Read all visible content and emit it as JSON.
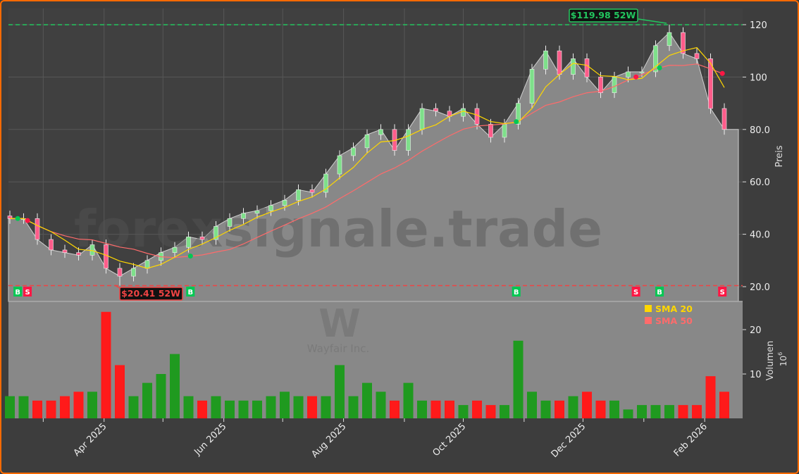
{
  "chart_data": [
    {
      "type": "candlestick",
      "ylabel": "Preis",
      "ylim": [
        14.4,
        126.2
      ],
      "yticks": [
        "20.0",
        "40.0",
        "60.0",
        "80.0",
        "100",
        "120"
      ],
      "grid": true,
      "dates": [
        "2025-02-12",
        "2025-02-19",
        "2025-02-26",
        "2025-03-05",
        "2025-03-12",
        "2025-03-19",
        "2025-03-26",
        "2025-04-02",
        "2025-04-09",
        "2025-04-16",
        "2025-04-23",
        "2025-04-30",
        "2025-05-07",
        "2025-05-14",
        "2025-05-21",
        "2025-05-28",
        "2025-06-04",
        "2025-06-11",
        "2025-06-18",
        "2025-06-25",
        "2025-07-02",
        "2025-07-09",
        "2025-07-16",
        "2025-07-23",
        "2025-07-30",
        "2025-08-06",
        "2025-08-13",
        "2025-08-20",
        "2025-08-27",
        "2025-09-03",
        "2025-09-10",
        "2025-09-17",
        "2025-09-24",
        "2025-10-01",
        "2025-10-08",
        "2025-10-15",
        "2025-10-22",
        "2025-10-29",
        "2025-11-05",
        "2025-11-12",
        "2025-11-19",
        "2025-11-26",
        "2025-12-03",
        "2025-12-10",
        "2025-12-17",
        "2025-12-24",
        "2025-12-31",
        "2026-01-07",
        "2026-01-14",
        "2026-01-21",
        "2026-01-28",
        "2026-02-04",
        "2026-02-11"
      ],
      "open": [
        47,
        46,
        46,
        38,
        34,
        33,
        32,
        36,
        27,
        24,
        27,
        30,
        33,
        35,
        39,
        38,
        43,
        46,
        48,
        49,
        51,
        53,
        57,
        56,
        63,
        70,
        73,
        78,
        80,
        72,
        80,
        88,
        87,
        85,
        88,
        82,
        77,
        82,
        90,
        103,
        110,
        101,
        107,
        100,
        94,
        100,
        102,
        102,
        112,
        117,
        109,
        107,
        88
      ],
      "high": [
        49,
        48,
        48,
        40,
        36,
        35,
        38,
        38,
        29,
        29,
        32,
        35,
        37,
        41,
        41,
        45,
        48,
        50,
        51,
        53,
        55,
        59,
        59,
        65,
        72,
        75,
        80,
        82,
        82,
        82,
        90,
        90,
        89,
        90,
        90,
        84,
        84,
        92,
        105,
        112,
        112,
        109,
        109,
        102,
        102,
        104,
        104,
        114,
        119.98,
        119,
        111,
        109,
        90
      ],
      "low": [
        44,
        44,
        36,
        32,
        31,
        30,
        30,
        25,
        20.41,
        22,
        25,
        28,
        31,
        33,
        36,
        36,
        41,
        44,
        46,
        47,
        49,
        51,
        54,
        54,
        61,
        68,
        71,
        76,
        70,
        70,
        78,
        85,
        83,
        83,
        80,
        75,
        75,
        80,
        88,
        101,
        99,
        99,
        98,
        92,
        92,
        98,
        100,
        100,
        110,
        107,
        105,
        86,
        78
      ],
      "close": [
        46,
        46,
        38,
        34,
        33,
        32,
        36,
        27,
        24,
        27,
        30,
        33,
        35,
        39,
        38,
        43,
        46,
        48,
        49,
        51,
        53,
        57,
        56,
        63,
        70,
        73,
        78,
        80,
        72,
        80,
        88,
        87,
        85,
        88,
        82,
        77,
        82,
        90,
        103,
        110,
        101,
        107,
        100,
        94,
        100,
        102,
        102,
        112,
        117,
        109,
        107,
        88,
        80
      ],
      "series": [
        {
          "name": "SMA 20",
          "color": "#ffd700",
          "window": 4
        },
        {
          "name": "SMA 50",
          "color": "#ff6b6b",
          "window": 10
        }
      ],
      "legend_position": "top-right",
      "high_52w": {
        "value": 119.98,
        "label": "$119.98 52W",
        "color": "#22c55e"
      },
      "low_52w": {
        "value": 20.41,
        "label": "$20.41 52W",
        "color": "#ef4444"
      },
      "signals": [
        {
          "type": "B",
          "date": "2025-02-16"
        },
        {
          "type": "S",
          "date": "2025-02-21"
        },
        {
          "type": "B",
          "date": "2025-05-15"
        },
        {
          "type": "B",
          "date": "2025-10-28"
        },
        {
          "type": "S",
          "date": "2025-12-28"
        },
        {
          "type": "B",
          "date": "2026-01-09"
        },
        {
          "type": "S",
          "date": "2026-02-10"
        }
      ],
      "signal_colors": {
        "B": "#00c853",
        "S": "#ff1744"
      }
    },
    {
      "type": "bar",
      "ylabel": "Volumen",
      "yunit": "10^6",
      "ylim": [
        0,
        26.3
      ],
      "yticks": [
        "10",
        "20"
      ],
      "values": [
        5,
        5,
        4,
        4,
        5,
        6,
        6,
        24,
        12,
        5,
        8,
        10,
        14.5,
        5,
        4,
        5,
        4,
        4,
        4,
        5,
        6,
        5,
        5,
        5,
        12,
        5,
        8,
        6,
        4,
        8,
        4,
        4,
        4,
        3,
        4,
        3,
        3,
        17.5,
        6,
        4,
        4,
        5,
        6,
        4,
        4,
        2,
        3,
        3,
        3,
        3,
        3,
        9.5,
        6
      ],
      "up_color": "#1f9a1f",
      "down_color": "#ff1a1a"
    }
  ],
  "x_axis": {
    "ticks": [
      {
        "date": "2025-04-01",
        "label": "Apr 2025"
      },
      {
        "date": "2025-06-01",
        "label": "Jun 2025"
      },
      {
        "date": "2025-08-01",
        "label": "Aug 2025"
      },
      {
        "date": "2025-10-01",
        "label": "Oct 2025"
      },
      {
        "date": "2025-12-01",
        "label": "Dec 2025"
      },
      {
        "date": "2026-02-01",
        "label": "Feb 2026"
      }
    ],
    "minor": [
      "2025-03-01",
      "2025-05-01",
      "2025-07-01",
      "2025-09-01",
      "2025-11-01",
      "2026-01-01"
    ]
  },
  "watermark": {
    "site": "forexsignale.trade",
    "logo_letter": "W",
    "company": "Wayfair Inc."
  },
  "legend": {
    "sma20": "SMA 20",
    "sma50": "SMA 50"
  },
  "labels": {
    "price_axis": "Preis",
    "volume_axis": "Volumen",
    "volume_unit": "10",
    "volume_exp": "6"
  }
}
